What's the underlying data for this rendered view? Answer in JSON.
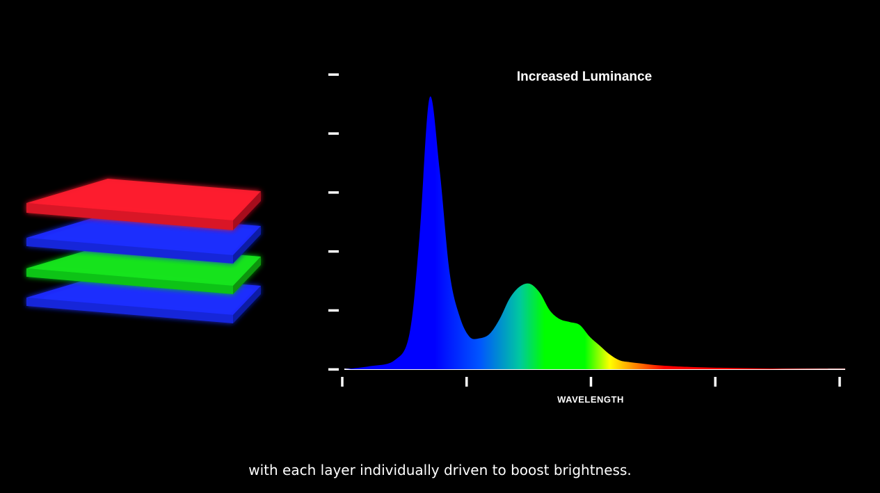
{
  "caption": "with each layer individually driven to boost brightness.",
  "layer_stack": [
    {
      "color": "#ff1a2e"
    },
    {
      "color": "#1a2cff"
    },
    {
      "color": "#12e51a"
    },
    {
      "color": "#1a2cff"
    }
  ],
  "chart_data": {
    "type": "area",
    "title": "Increased Luminance",
    "xlabel": "WAVELENGTH",
    "ylabel": "",
    "x_tick_count": 5,
    "y_tick_count": 6,
    "xlim": [
      0,
      100
    ],
    "ylim": [
      0,
      100
    ],
    "grid": false,
    "series": [
      {
        "x": [
          0,
          5,
          10,
          13,
          15,
          17,
          19,
          21,
          23,
          25,
          27,
          29,
          31,
          33,
          35,
          37,
          39,
          41,
          43,
          45,
          47,
          49,
          51,
          53,
          55,
          57,
          59,
          61,
          63,
          65,
          67,
          70,
          75,
          80,
          85,
          90,
          95,
          100
        ],
        "y": [
          0,
          1,
          3,
          12,
          45,
          92,
          68,
          33,
          18,
          11,
          10.5,
          12,
          17,
          24,
          28,
          29,
          26,
          20,
          17,
          16,
          15,
          11,
          8,
          5,
          3,
          2.4,
          2,
          1.6,
          1.3,
          1.1,
          0.9,
          0.7,
          0.5,
          0.35,
          0.25,
          0.15,
          0.1,
          0.05
        ]
      }
    ],
    "spectrum_colors": [
      "#0000ff",
      "#0000ff",
      "#0055ff",
      "#00c8a0",
      "#00ff00",
      "#00ff00",
      "#ffff00",
      "#ff8800",
      "#ff0000",
      "#ff0000"
    ]
  }
}
